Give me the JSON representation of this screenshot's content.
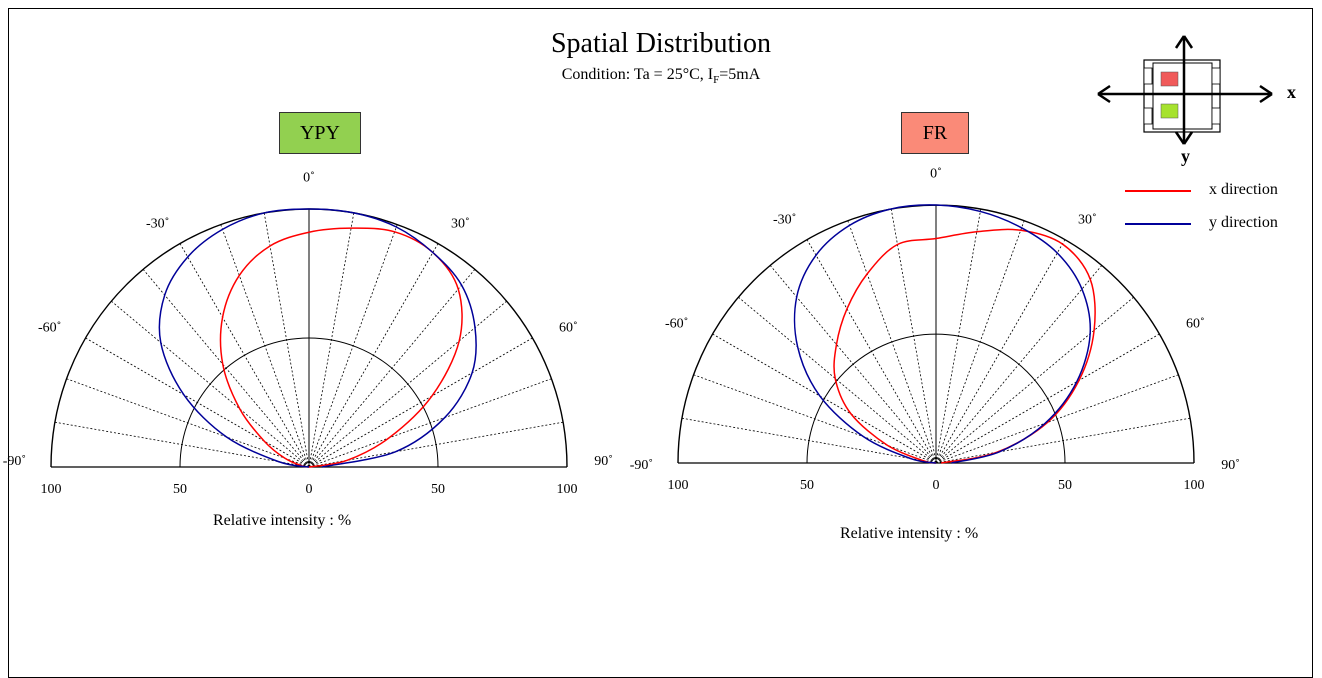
{
  "header": {
    "title": "Spatial Distribution",
    "condition_prefix": "Condition: Ta = 25°C, I",
    "condition_sub": "F",
    "condition_suffix": "=5mA"
  },
  "legend": {
    "x_label": "x direction",
    "y_label": "y direction",
    "x_color": "#ff0000",
    "y_color": "#000099"
  },
  "package_diagram": {
    "x_axis_label": "x",
    "y_axis_label": "y",
    "chip_top_color": "#f05a5a",
    "chip_bottom_color": "#a6e22e"
  },
  "angle_labels": [
    "0˚",
    "-30˚",
    "30˚",
    "-60˚",
    "60˚",
    "-90˚",
    "90˚"
  ],
  "radial_labels": [
    "100",
    "50",
    "0",
    "50",
    "100"
  ],
  "chart_data": [
    {
      "type": "polar",
      "chip_label": "YPY",
      "chip_color": "#92d050",
      "xlabel": "Relative intensity : %",
      "angle_range": [
        -90,
        90
      ],
      "radius_range": [
        0,
        100
      ],
      "series": [
        {
          "name": "x direction",
          "color": "#ff0000",
          "points": [
            [
              -90,
              0
            ],
            [
              -80,
              3
            ],
            [
              -70,
              10
            ],
            [
              -60,
              20
            ],
            [
              -50,
              35
            ],
            [
              -40,
              52
            ],
            [
              -30,
              67
            ],
            [
              -20,
              79
            ],
            [
              -10,
              87
            ],
            [
              0,
              91
            ],
            [
              10,
              94
            ],
            [
              20,
              97
            ],
            [
              30,
              96
            ],
            [
              40,
              90
            ],
            [
              50,
              76
            ],
            [
              60,
              55
            ],
            [
              70,
              33
            ],
            [
              80,
              15
            ],
            [
              90,
              0
            ]
          ]
        },
        {
          "name": "y direction",
          "color": "#000099",
          "points": [
            [
              -90,
              0
            ],
            [
              -80,
              12
            ],
            [
              -70,
              34
            ],
            [
              -60,
              56
            ],
            [
              -50,
              75
            ],
            [
              -40,
              87
            ],
            [
              -30,
              94
            ],
            [
              -20,
              98
            ],
            [
              -10,
              100
            ],
            [
              0,
              100
            ],
            [
              10,
              100
            ],
            [
              20,
              99
            ],
            [
              30,
              96
            ],
            [
              40,
              92
            ],
            [
              50,
              84
            ],
            [
              60,
              73
            ],
            [
              70,
              56
            ],
            [
              80,
              34
            ],
            [
              90,
              5
            ]
          ]
        }
      ]
    },
    {
      "type": "polar",
      "chip_label": "FR",
      "chip_color": "#fa8a78",
      "xlabel": "Relative intensity : %",
      "angle_range": [
        -90,
        90
      ],
      "radius_range": [
        0,
        100
      ],
      "series": [
        {
          "name": "x direction",
          "color": "#ff0000",
          "points": [
            [
              -90,
              0
            ],
            [
              -80,
              5
            ],
            [
              -70,
              20
            ],
            [
              -60,
              38
            ],
            [
              -50,
              51
            ],
            [
              -40,
              60
            ],
            [
              -30,
              69
            ],
            [
              -20,
              78
            ],
            [
              -10,
              86
            ],
            [
              0,
              87
            ],
            [
              10,
              91
            ],
            [
              20,
              96
            ],
            [
              30,
              98
            ],
            [
              40,
              93
            ],
            [
              50,
              80
            ],
            [
              60,
              64
            ],
            [
              70,
              46
            ],
            [
              80,
              24
            ],
            [
              90,
              2
            ]
          ]
        },
        {
          "name": "y direction",
          "color": "#000099",
          "points": [
            [
              -90,
              0
            ],
            [
              -80,
              10
            ],
            [
              -70,
              30
            ],
            [
              -60,
              52
            ],
            [
              -50,
              70
            ],
            [
              -40,
              84
            ],
            [
              -30,
              93
            ],
            [
              -20,
              98
            ],
            [
              -10,
              100
            ],
            [
              0,
              100
            ],
            [
              10,
              99
            ],
            [
              20,
              97
            ],
            [
              30,
              94
            ],
            [
              40,
              88
            ],
            [
              50,
              78
            ],
            [
              60,
              63
            ],
            [
              70,
              45
            ],
            [
              80,
              25
            ],
            [
              90,
              6
            ]
          ]
        }
      ]
    }
  ]
}
